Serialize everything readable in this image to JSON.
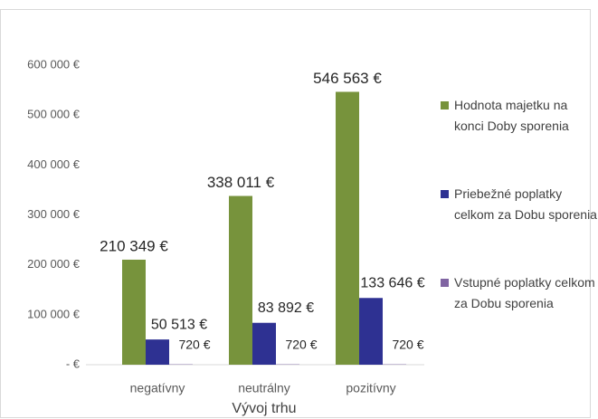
{
  "chart_data": {
    "type": "bar",
    "x_label": "Vývoj trhu",
    "categories": [
      "negatívny",
      "neutrálny",
      "pozitívny"
    ],
    "series": [
      {
        "name": "Hodnota majetku na konci Doby sporenia",
        "color": "#77933c",
        "values": [
          210349,
          338011,
          546563
        ],
        "value_labels": [
          "210 349 €",
          "338 011 €",
          "546 563 €"
        ]
      },
      {
        "name": "Priebežné poplatky celkom za Dobu sporenia",
        "color": "#2e3192",
        "values": [
          50513,
          83892,
          133646
        ],
        "value_labels": [
          "50 513 €",
          "83 892 €",
          "133 646 €"
        ]
      },
      {
        "name": "Vstupné poplatky celkom za Dobu sporenia",
        "color": "#8064a2",
        "values": [
          720,
          720,
          720
        ],
        "value_labels": [
          "720 €",
          "720 €",
          "720 €"
        ]
      }
    ],
    "ylim": [
      0,
      600000
    ],
    "yticks": [
      {
        "value": 0,
        "label": "- €"
      },
      {
        "value": 100000,
        "label": "100 000 €"
      },
      {
        "value": 200000,
        "label": "200 000 €"
      },
      {
        "value": 300000,
        "label": "300 000 €"
      },
      {
        "value": 400000,
        "label": "400 000 €"
      },
      {
        "value": 500000,
        "label": "500 000 €"
      },
      {
        "value": 600000,
        "label": "600 000 €"
      }
    ],
    "grid": false,
    "legend": "right"
  }
}
